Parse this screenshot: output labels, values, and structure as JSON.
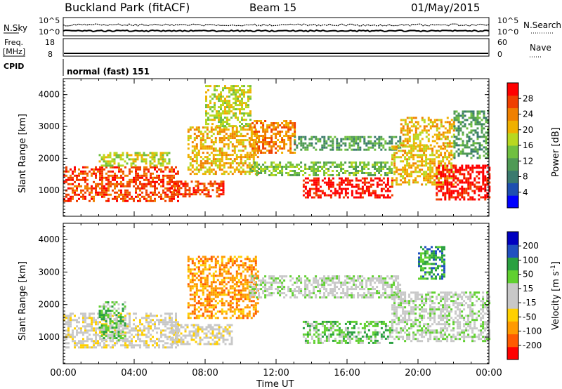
{
  "header": {
    "title": "Buckland Park (fitACF)",
    "beam": "Beam 15",
    "date": "01/May/2015"
  },
  "noise_panel": {
    "left_label": "N.Sky",
    "right_label": "N.Search",
    "left_ticks": [
      "10^5",
      "10^0"
    ],
    "right_ticks": [
      "10^5",
      "10^0"
    ]
  },
  "freq_panel": {
    "left_label_1": "Freq.",
    "left_label_2": "[MHz]",
    "right_label": "Nave",
    "left_ticks": [
      "18",
      "8"
    ],
    "right_ticks": [
      "60",
      "0"
    ]
  },
  "cpid_panel": {
    "label": "CPID",
    "value": "normal (fast) 151"
  },
  "colors": {
    "power_scale": [
      "#0000ff",
      "#1e4fb0",
      "#3a7a6e",
      "#4f9a55",
      "#70c040",
      "#b8d820",
      "#f0b000",
      "#f08000",
      "#f04000",
      "#ff0000"
    ],
    "velocity_scale": [
      "#ff0000",
      "#ff5a00",
      "#ff9a00",
      "#ffd000",
      "#c8c8c8",
      "#c8c8c8",
      "#60d030",
      "#2aa040",
      "#2050c0",
      "#0000c0"
    ]
  },
  "chart_data": [
    {
      "type": "heatmap",
      "panel": "power",
      "ylabel": "Slant Range [km]",
      "ylim": [
        180,
        4500
      ],
      "yticks": [
        "1000",
        "2000",
        "3000",
        "4000"
      ],
      "xlim": [
        "00:00",
        "24:00"
      ],
      "colorbar_label": "Power [dB]",
      "colorbar_ticks": [
        "4",
        "8",
        "12",
        "16",
        "20",
        "24",
        "28"
      ],
      "regions": [
        {
          "x0": 0,
          "x1": 6.5,
          "y0": 650,
          "y1": 1750,
          "level": 8
        },
        {
          "x0": 2,
          "x1": 6,
          "y0": 1750,
          "y1": 2200,
          "level": 5
        },
        {
          "x0": 6,
          "x1": 9,
          "y0": 800,
          "y1": 1300,
          "level": 8
        },
        {
          "x0": 7,
          "x1": 11,
          "y0": 1500,
          "y1": 3000,
          "level": 6
        },
        {
          "x0": 8,
          "x1": 10.5,
          "y0": 3000,
          "y1": 4300,
          "level": 5
        },
        {
          "x0": 10.5,
          "x1": 13,
          "y0": 2200,
          "y1": 3200,
          "level": 7
        },
        {
          "x0": 13.5,
          "x1": 18.5,
          "y0": 800,
          "y1": 1400,
          "level": 9
        },
        {
          "x0": 10.5,
          "x1": 18.5,
          "y0": 1500,
          "y1": 1900,
          "level": 4
        },
        {
          "x0": 13,
          "x1": 19,
          "y0": 2300,
          "y1": 2700,
          "level": 3
        },
        {
          "x0": 18.5,
          "x1": 22,
          "y0": 1200,
          "y1": 2400,
          "level": 6
        },
        {
          "x0": 19,
          "x1": 22,
          "y0": 2400,
          "y1": 3300,
          "level": 6
        },
        {
          "x0": 21,
          "x1": 24,
          "y0": 700,
          "y1": 1800,
          "level": 9
        },
        {
          "x0": 22,
          "x1": 24,
          "y0": 2000,
          "y1": 3500,
          "level": 3
        }
      ]
    },
    {
      "type": "heatmap",
      "panel": "velocity",
      "ylabel": "Slant Range [km]",
      "xlabel": "Time UT",
      "ylim": [
        180,
        4500
      ],
      "yticks": [
        "1000",
        "2000",
        "3000",
        "4000"
      ],
      "xticks": [
        "00:00",
        "04:00",
        "08:00",
        "12:00",
        "16:00",
        "20:00",
        "00:00"
      ],
      "colorbar_label": "Velocity [m s^-1]",
      "colorbar_ticks": [
        "200",
        "100",
        "50",
        "15",
        "-15",
        "-50",
        "-100",
        "-200"
      ],
      "regions": [
        {
          "x0": 0,
          "x1": 6.5,
          "y0": 650,
          "y1": 1750,
          "level": 4
        },
        {
          "x0": 6,
          "x1": 9.5,
          "y0": 800,
          "y1": 1400,
          "level": 4
        },
        {
          "x0": 7,
          "x1": 11,
          "y0": 1600,
          "y1": 3500,
          "level": 2
        },
        {
          "x0": 2,
          "x1": 3.5,
          "y0": 900,
          "y1": 2100,
          "level": 6
        },
        {
          "x0": 13.5,
          "x1": 18.5,
          "y0": 800,
          "y1": 1500,
          "level": 6
        },
        {
          "x0": 10.5,
          "x1": 19,
          "y0": 2200,
          "y1": 2900,
          "level": 5
        },
        {
          "x0": 18.5,
          "x1": 24,
          "y0": 900,
          "y1": 2400,
          "level": 5
        },
        {
          "x0": 20,
          "x1": 21.5,
          "y0": 2800,
          "y1": 3800,
          "level": 7
        }
      ]
    }
  ],
  "xaxis": {
    "ticks": [
      "00:00",
      "04:00",
      "08:00",
      "12:00",
      "16:00",
      "20:00",
      "00:00"
    ],
    "label": "Time UT"
  }
}
